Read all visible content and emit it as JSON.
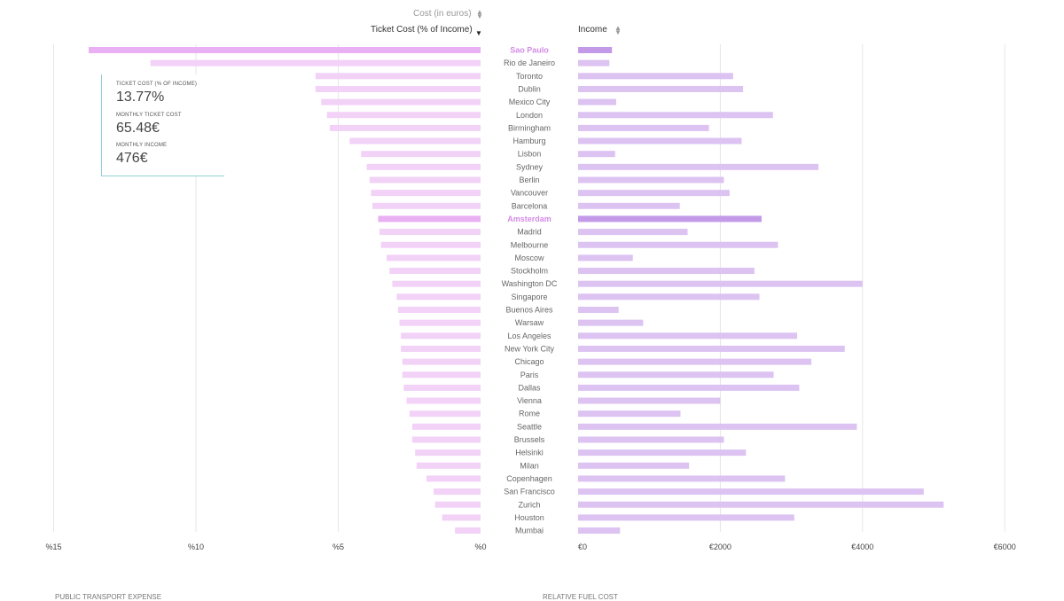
{
  "header": {
    "cost_label": "Cost (in euros)",
    "ticket_label": "Ticket Cost (% of Income)",
    "income_label": "Income"
  },
  "tooltip": {
    "ticket_cost_label": "TICKET COST (% OF INCOME)",
    "ticket_cost_value": "13.77%",
    "monthly_ticket_label": "MONTHLY TICKET COST",
    "monthly_ticket_value": "65.48€",
    "monthly_income_label": "MONTHLY INCOME",
    "monthly_income_value": "476€"
  },
  "footer": {
    "left": "PUBLIC TRANSPORT EXPENSE",
    "right": "RELATIVE FUEL COST"
  },
  "colors": {
    "left_bar": "#f2d2f7",
    "left_bar_highlight": "#e9b0f4",
    "right_bar": "#dcc3f2",
    "right_bar_highlight": "#c39ae8",
    "highlight_label": "#d38be6",
    "grid": "#e6e6e6",
    "tooltip_border": "#8fd1d6"
  },
  "chart_data": [
    {
      "type": "bar",
      "orientation": "horizontal",
      "direction": "leftward",
      "series": [
        {
          "name": "Ticket Cost (% of Income)",
          "values": [
            13.77,
            11.6,
            5.8,
            5.8,
            5.6,
            5.4,
            5.3,
            4.6,
            4.2,
            4.0,
            3.9,
            3.85,
            3.8,
            3.6,
            3.55,
            3.5,
            3.3,
            3.2,
            3.1,
            2.95,
            2.9,
            2.85,
            2.8,
            2.8,
            2.75,
            2.75,
            2.7,
            2.6,
            2.5,
            2.4,
            2.4,
            2.3,
            2.25,
            1.9,
            1.65,
            1.6,
            1.35,
            0.9
          ]
        }
      ],
      "xlim": [
        0,
        15
      ],
      "ticks": [
        "%15",
        "%10",
        "%5",
        "%0"
      ],
      "grid": true
    },
    {
      "type": "bar",
      "orientation": "horizontal",
      "series": [
        {
          "name": "Income",
          "values": [
            476,
            440,
            2180,
            2320,
            535,
            2740,
            1840,
            2300,
            520,
            3380,
            2050,
            2130,
            1430,
            2580,
            1540,
            2810,
            770,
            2480,
            4000,
            2550,
            570,
            915,
            3080,
            3750,
            3280,
            2750,
            3110,
            2000,
            1440,
            3920,
            2050,
            2360,
            1560,
            2910,
            4860,
            5140,
            3040,
            590
          ]
        }
      ],
      "xlim": [
        0,
        6000
      ],
      "ticks": [
        "€0",
        "€2000",
        "€4000",
        "€6000"
      ],
      "grid": true
    }
  ],
  "cities": [
    "Sao Paulo",
    "Rio de Janeiro",
    "Toronto",
    "Dublin",
    "Mexico City",
    "London",
    "Birmingham",
    "Hamburg",
    "Lisbon",
    "Sydney",
    "Berlin",
    "Vancouver",
    "Barcelona",
    "Amsterdam",
    "Madrid",
    "Melbourne",
    "Moscow",
    "Stockholm",
    "Washington DC",
    "Singapore",
    "Buenos Aires",
    "Warsaw",
    "Los Angeles",
    "New York City",
    "Chicago",
    "Paris",
    "Dallas",
    "Vienna",
    "Rome",
    "Seattle",
    "Brussels",
    "Helsinki",
    "Milan",
    "Copenhagen",
    "San Francisco",
    "Zurich",
    "Houston",
    "Mumbai"
  ],
  "highlighted": [
    "Sao Paulo",
    "Amsterdam"
  ]
}
